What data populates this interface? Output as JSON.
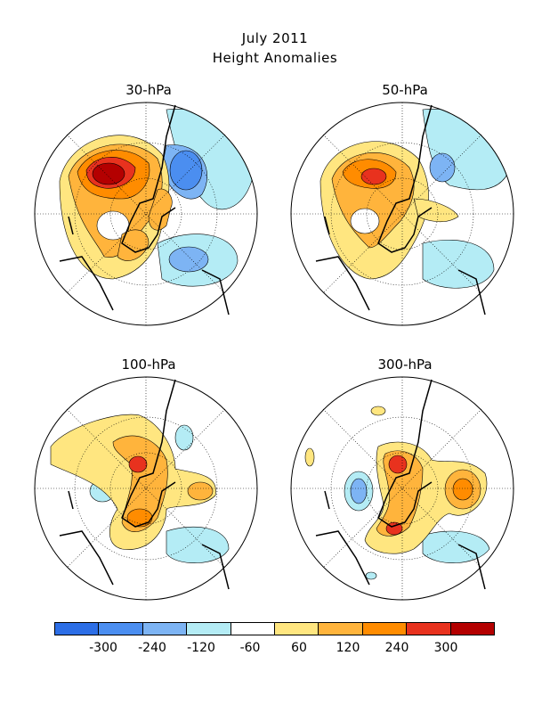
{
  "title": {
    "line1": "July 2011",
    "line2": "Height Anomalies"
  },
  "panels": [
    {
      "label": "30-hPa"
    },
    {
      "label": "50-hPa"
    },
    {
      "label": "100-hPa"
    },
    {
      "label": "300-hPa"
    }
  ],
  "colorbar": {
    "colors": [
      "#2c6ee6",
      "#4b8ef0",
      "#7db4f4",
      "#b4ecf5",
      "#ffffff",
      "#ffe680",
      "#ffb43c",
      "#ff8c00",
      "#e8321e",
      "#b40000"
    ],
    "labels": [
      "-300",
      "-240",
      "-120",
      "-60",
      "60",
      "120",
      "240",
      "300"
    ]
  }
}
